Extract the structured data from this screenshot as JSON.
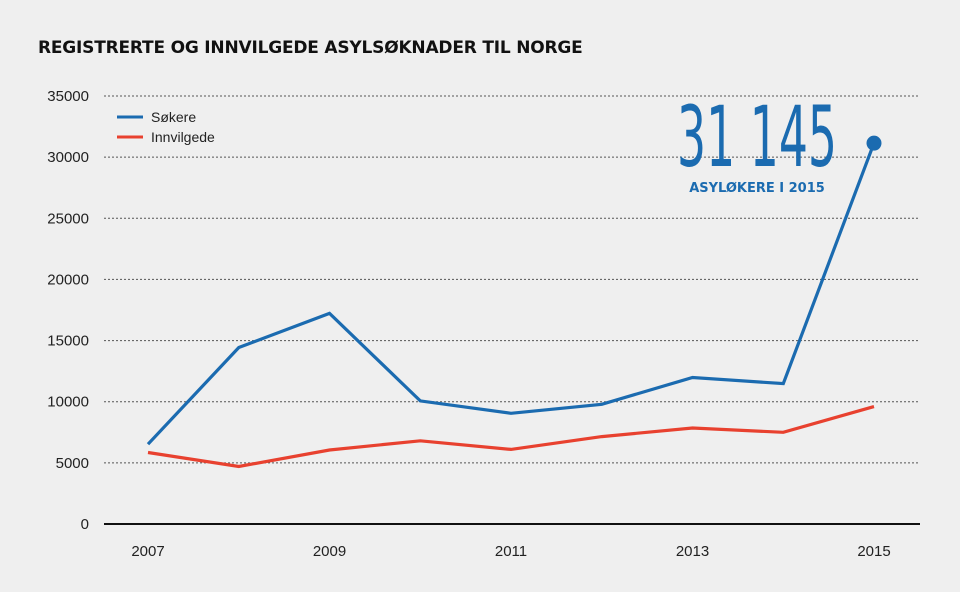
{
  "chart_data": {
    "type": "line",
    "title": "REGISTRERTE OG INNVILGEDE ASYLSØKNADER TIL NORGE",
    "x": [
      2007,
      2008,
      2009,
      2010,
      2011,
      2012,
      2013,
      2014,
      2015
    ],
    "x_tick_labels": [
      "2007",
      "2009",
      "2011",
      "2013",
      "2015"
    ],
    "x_tick_values": [
      2007,
      2009,
      2011,
      2013,
      2015
    ],
    "xlim": [
      2007,
      2015
    ],
    "ylim": [
      0,
      35000
    ],
    "y_ticks": [
      0,
      5000,
      10000,
      15000,
      20000,
      25000,
      30000,
      35000
    ],
    "y_tick_labels": [
      "0",
      "5000",
      "10000",
      "15000",
      "20000",
      "25000",
      "30000",
      "35000"
    ],
    "grid": true,
    "legend_position": "top-left",
    "series": [
      {
        "name": "Søkere",
        "color": "#1b6bb0",
        "values": [
          6528,
          14431,
          17226,
          10064,
          9053,
          9785,
          11983,
          11480,
          31145
        ]
      },
      {
        "name": "Innvilgede",
        "color": "#e8412f",
        "values": [
          5850,
          4700,
          6050,
          6800,
          6100,
          7150,
          7850,
          7500,
          9600
        ]
      }
    ],
    "annotation": {
      "value_text": "31 145",
      "caption": "ASYLØKERE I 2015",
      "color": "#1b6bb0"
    }
  }
}
